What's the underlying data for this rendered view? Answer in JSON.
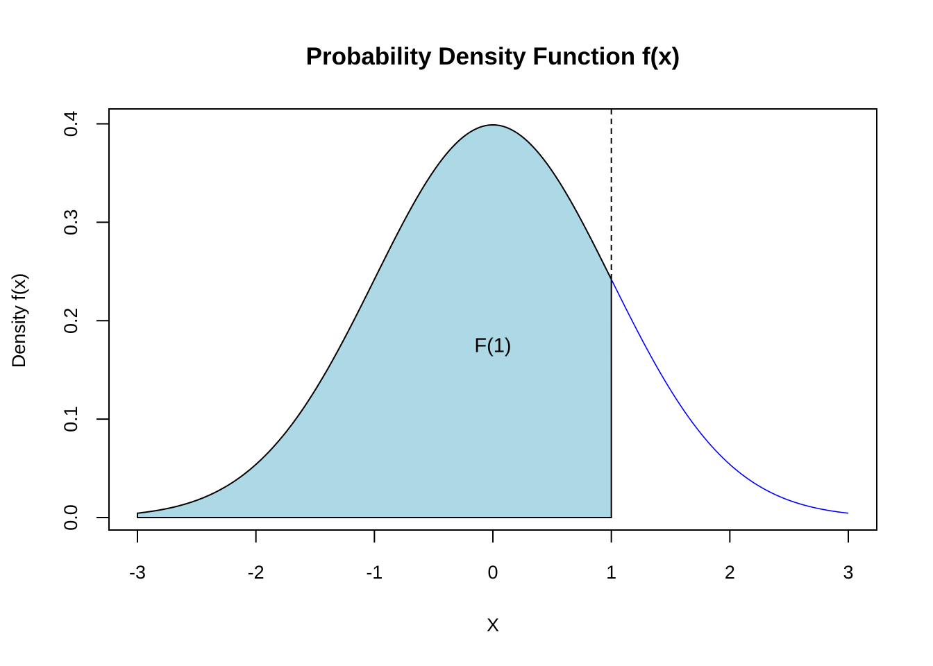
{
  "chart_data": {
    "type": "area",
    "title": "Probability Density Function f(x)",
    "xlabel": "X",
    "ylabel": "Density f(x)",
    "xlim": [
      -3,
      3
    ],
    "ylim": [
      0,
      0.4
    ],
    "x_ticks": [
      -3,
      -2,
      -1,
      0,
      1,
      2,
      3
    ],
    "y_ticks": [
      0.0,
      0.1,
      0.2,
      0.3,
      0.4
    ],
    "x_tick_labels": [
      "-3",
      "-2",
      "-1",
      "0",
      "1",
      "2",
      "3"
    ],
    "y_tick_labels": [
      "0.0",
      "0.1",
      "0.2",
      "0.3",
      "0.4"
    ],
    "grid": false,
    "series": [
      {
        "distribution": "standard normal",
        "x": [
          -3,
          -2.5,
          -2,
          -1.5,
          -1,
          -0.5,
          0,
          0.5,
          1,
          1.5,
          2,
          2.5,
          3
        ],
        "values": [
          0.0044,
          0.0175,
          0.054,
          0.1295,
          0.242,
          0.3521,
          0.3989,
          0.3521,
          0.242,
          0.1295,
          0.054,
          0.0175,
          0.0044
        ]
      }
    ],
    "shaded_region": {
      "x_from": -3,
      "x_to": 1,
      "fill": "#add8e6"
    },
    "cutoff_line": {
      "x": 1,
      "style": "dashed"
    },
    "annotation": {
      "text": "F(1)",
      "x": 0,
      "y": 0.175
    },
    "colors": {
      "shaded_fill": "#add8e6",
      "shaded_curve": "#000000",
      "right_tail_curve": "#0000ff",
      "axis": "#000000"
    }
  }
}
